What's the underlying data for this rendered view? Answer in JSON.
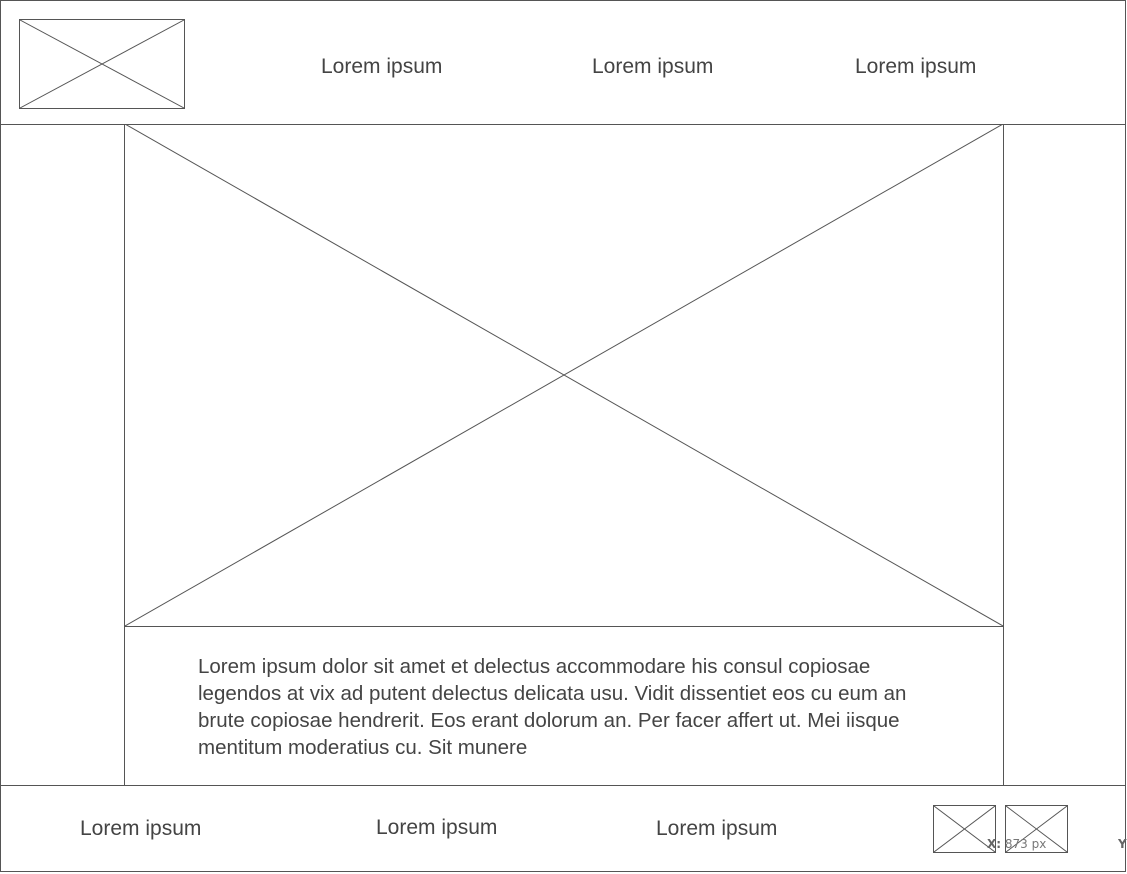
{
  "header": {
    "logo_icon": "image-placeholder-icon",
    "nav": [
      "Lorem ipsum",
      "Lorem ipsum",
      "Lorem ipsum"
    ]
  },
  "hero": {
    "image_icon": "image-placeholder-icon",
    "paragraph": "Lorem ipsum dolor sit amet et delectus accommodare his consul copiosae legendos at vix ad putent delectus delicata usu. Vidit dissentiet eos cu eum an brute copiosae hendrerit. Eos erant dolorum an. Per facer affert ut. Mei iisque mentitum moderatius cu. Sit munere"
  },
  "footer": {
    "nav": [
      "Lorem ipsum",
      "Lorem ipsum",
      "Lorem ipsum"
    ],
    "icons": [
      "image-placeholder-icon",
      "image-placeholder-icon"
    ]
  },
  "coordinate_readout": {
    "x_label": "X:",
    "x_value": "873 px",
    "y_label": "Y"
  }
}
